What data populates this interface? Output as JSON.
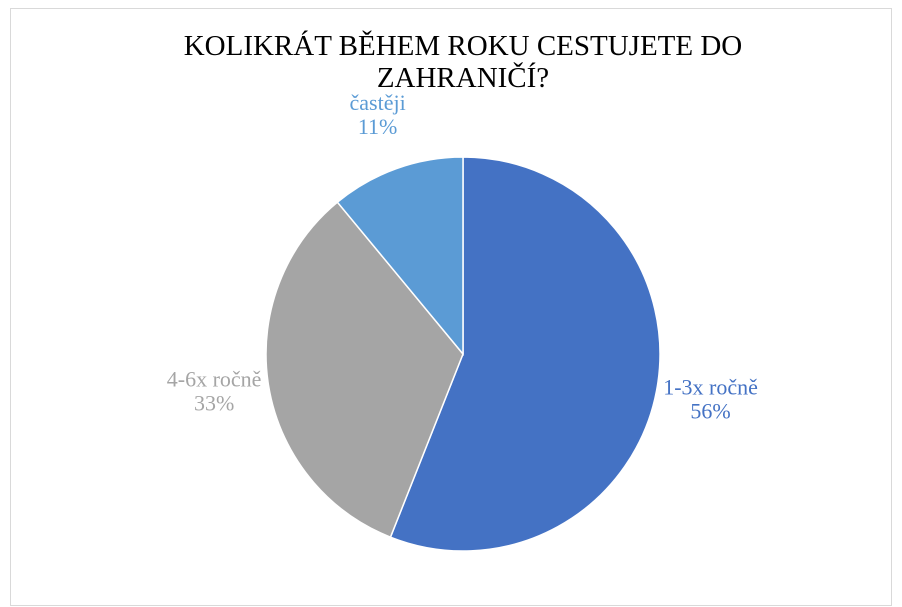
{
  "chart_data": {
    "type": "pie",
    "title": "KOLIKRÁT BĚHEM ROKU CESTUJETE DO ZAHRANIČÍ?",
    "categories": [
      "1-3x ročně",
      "4-6x ročně",
      "častěji"
    ],
    "values": [
      56,
      33,
      11
    ],
    "value_labels": [
      "56%",
      "33%",
      "11%"
    ],
    "colors": [
      "#4472c4",
      "#a5a5a5",
      "#5b9bd5"
    ]
  }
}
